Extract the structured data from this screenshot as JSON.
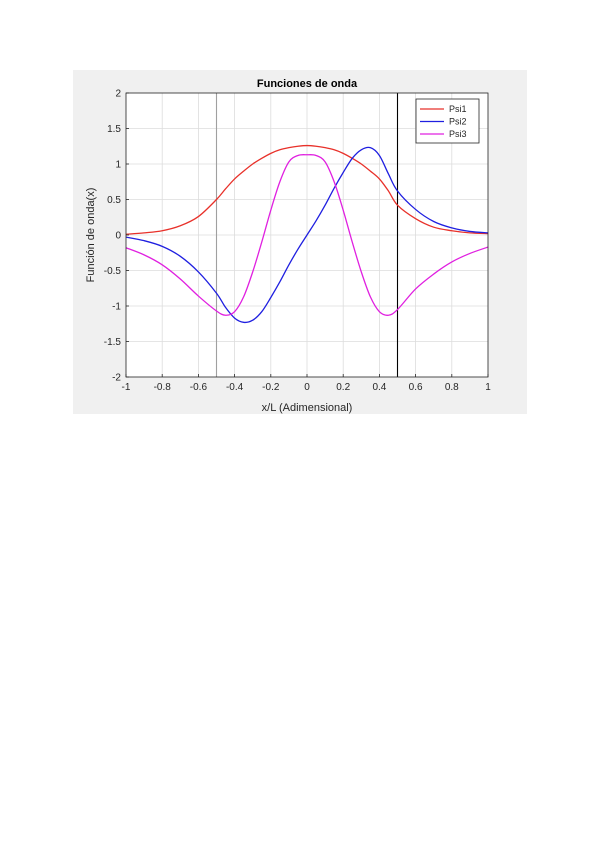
{
  "chart_data": {
    "type": "line",
    "title": "Funciones de onda",
    "xlabel": "x/L (Adimensional)",
    "ylabel": "Función de onda(x)",
    "xlim": [
      -1,
      1
    ],
    "ylim": [
      -2,
      2
    ],
    "xticks": [
      "-1",
      "-0.8",
      "-0.6",
      "-0.4",
      "-0.2",
      "0",
      "0.2",
      "0.4",
      "0.6",
      "0.8",
      "1"
    ],
    "yticks": [
      "2",
      "1.5",
      "1",
      "0.5",
      "0",
      "-0.5",
      "-1",
      "-1.5",
      "-2"
    ],
    "grid": true,
    "legend_position": "top-right",
    "vertical_lines": [
      {
        "x": -0.5,
        "color": "#a0a0a0"
      },
      {
        "x": 0.5,
        "color": "#000000"
      }
    ],
    "x": [
      -1.0,
      -0.9,
      -0.8,
      -0.7,
      -0.6,
      -0.5,
      -0.45,
      -0.4,
      -0.35,
      -0.3,
      -0.25,
      -0.2,
      -0.15,
      -0.1,
      -0.05,
      0.0,
      0.05,
      0.1,
      0.15,
      0.2,
      0.25,
      0.3,
      0.35,
      0.4,
      0.45,
      0.5,
      0.6,
      0.7,
      0.8,
      0.9,
      1.0
    ],
    "series": [
      {
        "name": "Psi1",
        "color": "#e8312a",
        "values": [
          0.01,
          0.03,
          0.06,
          0.13,
          0.26,
          0.5,
          0.65,
          0.79,
          0.9,
          1.0,
          1.08,
          1.15,
          1.2,
          1.23,
          1.25,
          1.26,
          1.25,
          1.23,
          1.2,
          1.15,
          1.08,
          1.0,
          0.9,
          0.79,
          0.62,
          0.42,
          0.23,
          0.11,
          0.06,
          0.03,
          0.02
        ]
      },
      {
        "name": "Psi2",
        "color": "#1f1fe0",
        "values": [
          -0.03,
          -0.08,
          -0.16,
          -0.3,
          -0.52,
          -0.82,
          -1.02,
          -1.17,
          -1.23,
          -1.2,
          -1.08,
          -0.88,
          -0.66,
          -0.42,
          -0.2,
          0.0,
          0.2,
          0.42,
          0.66,
          0.88,
          1.08,
          1.2,
          1.23,
          1.12,
          0.86,
          0.62,
          0.36,
          0.19,
          0.1,
          0.05,
          0.03
        ]
      },
      {
        "name": "Psi3",
        "color": "#e020e0",
        "values": [
          -0.18,
          -0.28,
          -0.42,
          -0.62,
          -0.86,
          -1.07,
          -1.13,
          -1.08,
          -0.87,
          -0.52,
          -0.1,
          0.35,
          0.75,
          1.03,
          1.12,
          1.13,
          1.12,
          1.03,
          0.75,
          0.35,
          -0.1,
          -0.52,
          -0.87,
          -1.08,
          -1.13,
          -1.05,
          -0.76,
          -0.55,
          -0.38,
          -0.26,
          -0.17
        ]
      }
    ]
  }
}
